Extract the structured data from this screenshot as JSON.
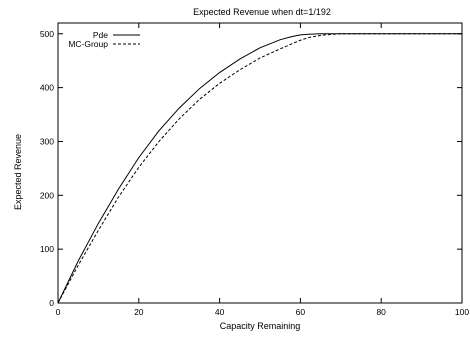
{
  "chart_data": {
    "type": "line",
    "title": "Expected Revenue when dt=1/192",
    "xlabel": "Capacity Remaining",
    "ylabel": "Expected Revenue",
    "xlim": [
      0,
      100
    ],
    "ylim": [
      0,
      520
    ],
    "x_ticks": [
      0,
      20,
      40,
      60,
      80,
      100
    ],
    "y_ticks": [
      0,
      100,
      200,
      300,
      400,
      500
    ],
    "grid": false,
    "legend_position": "top-left",
    "series": [
      {
        "name": "Pde",
        "style": "solid",
        "color": "#000000",
        "x": [
          0,
          5,
          10,
          15,
          20,
          25,
          30,
          35,
          40,
          45,
          50,
          55,
          58,
          60,
          62,
          65,
          70,
          75,
          80,
          90,
          100
        ],
        "y": [
          0,
          78,
          148,
          212,
          270,
          320,
          362,
          398,
          428,
          453,
          474,
          489,
          495,
          498,
          499,
          500,
          500,
          500,
          500,
          500,
          500
        ]
      },
      {
        "name": "MC-Group",
        "style": "dashed",
        "color": "#000000",
        "x": [
          0,
          5,
          10,
          15,
          20,
          25,
          30,
          35,
          40,
          45,
          50,
          55,
          60,
          62,
          65,
          68,
          70,
          75,
          80,
          90,
          100
        ],
        "y": [
          0,
          70,
          135,
          197,
          252,
          300,
          342,
          378,
          408,
          433,
          455,
          472,
          488,
          493,
          497,
          499,
          500,
          500,
          500,
          500,
          500
        ]
      }
    ]
  }
}
